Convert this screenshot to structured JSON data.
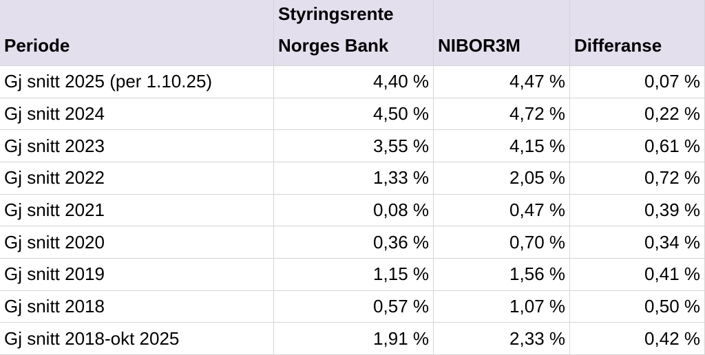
{
  "table": {
    "header": [
      [
        "Periode"
      ],
      [
        "Styringsrente",
        "Norges Bank"
      ],
      [
        "NIBOR3M"
      ],
      [
        "Differanse"
      ]
    ],
    "rows": [
      [
        "Gj snitt 2025 (per 1.10.25)",
        "4,40 %",
        "4,47 %",
        "0,07 %"
      ],
      [
        "Gj snitt 2024",
        "4,50 %",
        "4,72 %",
        "0,22 %"
      ],
      [
        "Gj snitt 2023",
        "3,55 %",
        "4,15 %",
        "0,61 %"
      ],
      [
        "Gj snitt 2022",
        "1,33 %",
        "2,05 %",
        "0,72 %"
      ],
      [
        "Gj snitt 2021",
        "0,08 %",
        "0,47 %",
        "0,39 %"
      ],
      [
        "Gj snitt 2020",
        "0,36 %",
        "0,70 %",
        "0,34 %"
      ],
      [
        "Gj snitt 2019",
        "1,15 %",
        "1,56 %",
        "0,41 %"
      ],
      [
        "Gj snitt 2018",
        "0,57 %",
        "1,07 %",
        "0,50 %"
      ],
      [
        "Gj snitt 2018-okt 2025",
        "1,91 %",
        "2,33 %",
        "0,42 %"
      ]
    ]
  }
}
